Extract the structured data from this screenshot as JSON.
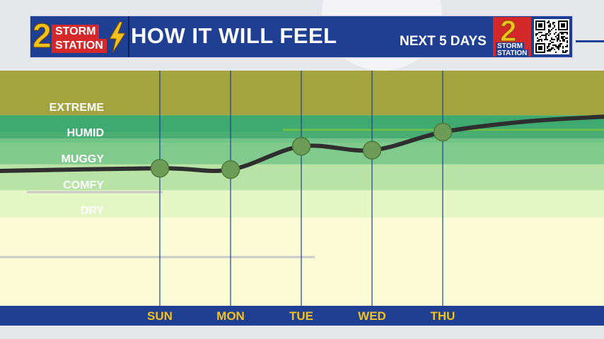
{
  "header": {
    "logo_number": "2",
    "logo_line1": "STORM",
    "logo_line2": "STATION",
    "title": "HOW IT WILL FEEL",
    "subtitle": "NEXT 5 DAYS",
    "station_number": "2",
    "station_line1": "STORM",
    "station_line2": "STATION"
  },
  "colors": {
    "header_blue": "#1f3f93",
    "accent_red": "#d6282b",
    "accent_yellow": "#f3c21a",
    "extreme": "#a3a33f",
    "humid": "#3faa70",
    "muggy": "#7fca8c",
    "comfy": "#b9e3a6",
    "dry": "#e4f6c3",
    "line": "#2f2f2f",
    "point": "#6c9c56"
  },
  "chart_data": {
    "type": "line",
    "categories": [
      "SUN",
      "MON",
      "TUE",
      "WED",
      "THU"
    ],
    "bands": [
      "EXTREME",
      "HUMID",
      "MUGGY",
      "COMFY",
      "DRY"
    ],
    "values": [
      2.85,
      2.8,
      3.7,
      3.55,
      4.25
    ],
    "ylim": [
      0,
      6
    ],
    "grid": true
  }
}
